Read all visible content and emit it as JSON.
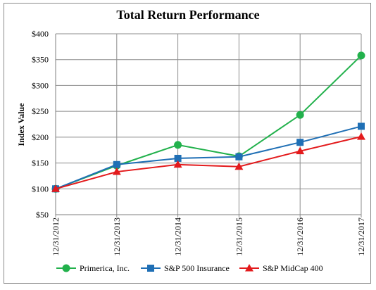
{
  "chart_data": {
    "type": "line",
    "title": "Total Return Performance",
    "xlabel": "",
    "ylabel": "Index Value",
    "categories": [
      "12/31/2012",
      "12/31/2013",
      "12/31/2014",
      "12/31/2015",
      "12/31/2016",
      "12/31/2017"
    ],
    "ylim": [
      50,
      400
    ],
    "yticks": [
      50,
      100,
      150,
      200,
      250,
      300,
      350,
      400
    ],
    "ytick_labels": [
      "$50",
      "$100",
      "$150",
      "$200",
      "$250",
      "$300",
      "$350",
      "$400"
    ],
    "grid": true,
    "legend_position": "bottom",
    "series": [
      {
        "name": "Primerica, Inc.",
        "color": "#22b14c",
        "marker": "circle",
        "values": [
          100,
          145,
          185,
          163,
          243,
          358
        ]
      },
      {
        "name": "S&P 500 Insurance",
        "color": "#1f6fb5",
        "marker": "square",
        "values": [
          100,
          147,
          159,
          162,
          190,
          221
        ]
      },
      {
        "name": "S&P MidCap 400",
        "color": "#e31a1c",
        "marker": "triangle",
        "values": [
          100,
          133,
          147,
          143,
          173,
          201
        ]
      }
    ]
  }
}
